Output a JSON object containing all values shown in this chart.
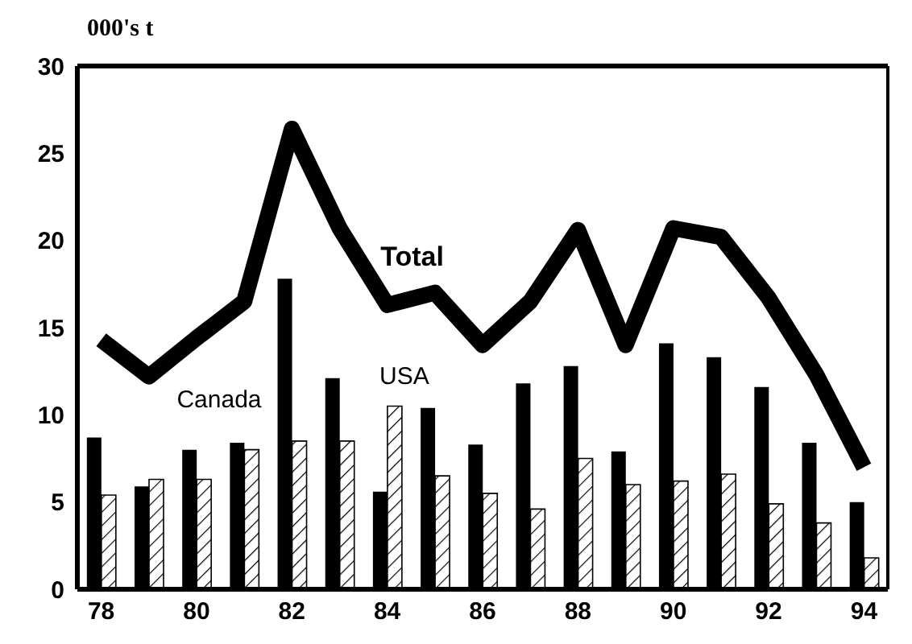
{
  "chart_data": {
    "type": "bar",
    "ylabel": "000's t",
    "categories": [
      "78",
      null,
      "80",
      null,
      "82",
      null,
      "84",
      null,
      "86",
      null,
      "88",
      null,
      "90",
      null,
      "92",
      null,
      "94"
    ],
    "series": [
      {
        "name": "Canada",
        "color": "#000000",
        "values": [
          8.7,
          5.9,
          8.0,
          8.4,
          17.8,
          12.1,
          5.6,
          10.4,
          8.3,
          11.8,
          12.8,
          7.9,
          14.1,
          13.3,
          11.6,
          8.4,
          5.0
        ]
      },
      {
        "name": "USA",
        "color": "#000000",
        "values": [
          5.4,
          6.3,
          6.3,
          8.0,
          8.5,
          8.5,
          10.5,
          6.5,
          5.5,
          4.6,
          7.5,
          6.0,
          6.2,
          6.6,
          4.9,
          3.8,
          1.8
        ]
      },
      {
        "name": "Total",
        "type": "line",
        "color": "#000000",
        "values": [
          14.3,
          12.2,
          14.4,
          16.5,
          26.4,
          20.7,
          16.3,
          17.0,
          14.0,
          16.5,
          20.6,
          14.0,
          20.7,
          20.2,
          16.7,
          12.3,
          7.0
        ]
      }
    ],
    "ylim": [
      0,
      30
    ],
    "yticks": [
      0,
      5,
      10,
      15,
      20,
      25,
      30
    ],
    "grid": false,
    "legend": false,
    "marker": "none",
    "line_style": "solid"
  }
}
